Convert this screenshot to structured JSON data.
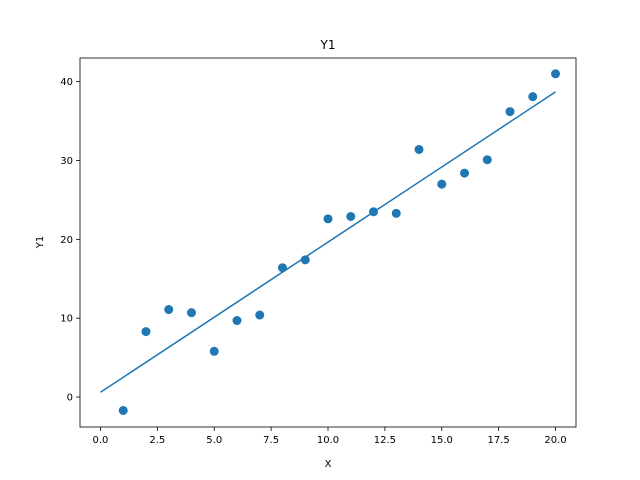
{
  "chart_data": {
    "type": "scatter",
    "title": "Y1",
    "xlabel": "X",
    "ylabel": "Y1",
    "xlim": [
      -0.9,
      20.9
    ],
    "ylim": [
      -3.8,
      43.0
    ],
    "x_ticks": [
      0.0,
      2.5,
      5.0,
      7.5,
      10.0,
      12.5,
      15.0,
      17.5,
      20.0
    ],
    "x_tick_labels": [
      "0.0",
      "2.5",
      "5.0",
      "7.5",
      "10.0",
      "12.5",
      "15.0",
      "17.5",
      "20.0"
    ],
    "y_ticks": [
      0,
      10,
      20,
      30,
      40
    ],
    "y_tick_labels": [
      "0",
      "10",
      "20",
      "30",
      "40"
    ],
    "grid": false,
    "series": [
      {
        "kind": "scatter",
        "color": "#1f77b4",
        "points": [
          {
            "x": 1,
            "y": -1.7
          },
          {
            "x": 2,
            "y": 8.3
          },
          {
            "x": 3,
            "y": 11.1
          },
          {
            "x": 4,
            "y": 10.7
          },
          {
            "x": 5,
            "y": 5.8
          },
          {
            "x": 6,
            "y": 9.7
          },
          {
            "x": 7,
            "y": 10.4
          },
          {
            "x": 8,
            "y": 16.4
          },
          {
            "x": 9,
            "y": 17.4
          },
          {
            "x": 10,
            "y": 22.6
          },
          {
            "x": 11,
            "y": 22.9
          },
          {
            "x": 12,
            "y": 23.5
          },
          {
            "x": 13,
            "y": 23.3
          },
          {
            "x": 14,
            "y": 31.4
          },
          {
            "x": 15,
            "y": 27.0
          },
          {
            "x": 16,
            "y": 28.4
          },
          {
            "x": 17,
            "y": 30.1
          },
          {
            "x": 18,
            "y": 36.2
          },
          {
            "x": 19,
            "y": 38.1
          },
          {
            "x": 20,
            "y": 41.0
          }
        ]
      },
      {
        "kind": "line",
        "color": "#1f77b4",
        "points": [
          {
            "x": 0,
            "y": 0.6
          },
          {
            "x": 20,
            "y": 38.7
          }
        ]
      }
    ]
  }
}
